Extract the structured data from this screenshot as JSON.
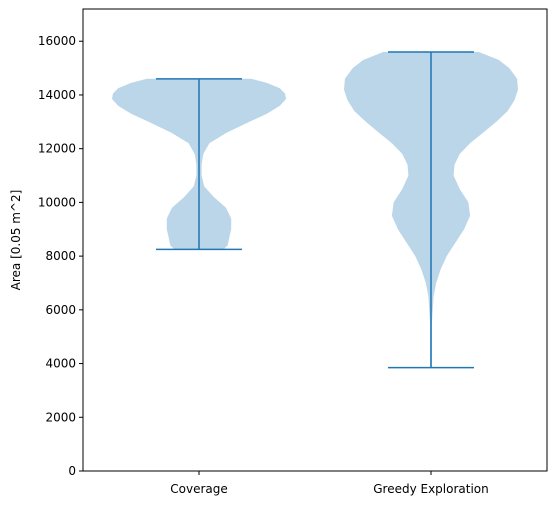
{
  "chart_data": {
    "type": "violin",
    "title": "",
    "xlabel": "",
    "ylabel": "Area [0.05 m^2]",
    "ylim": [
      0,
      17200
    ],
    "yticks": [
      0,
      2000,
      4000,
      6000,
      8000,
      10000,
      12000,
      14000,
      16000
    ],
    "ytick_labels": [
      "0",
      "2000",
      "4000",
      "6000",
      "8000",
      "10000",
      "12000",
      "14000",
      "16000"
    ],
    "categories": [
      "Coverage",
      "Greedy Exploration"
    ],
    "colors": {
      "fill": "#bcd6e9",
      "line": "#1f77b4",
      "axis": "#000000"
    },
    "grid": false,
    "legend": "none",
    "violins": [
      {
        "category": "Coverage",
        "min": 8250,
        "max": 14600,
        "density": [
          [
            8250,
            0.28
          ],
          [
            8400,
            0.33
          ],
          [
            8700,
            0.35
          ],
          [
            9000,
            0.37
          ],
          [
            9400,
            0.37
          ],
          [
            9800,
            0.31
          ],
          [
            10200,
            0.17
          ],
          [
            10600,
            0.06
          ],
          [
            11000,
            0.03
          ],
          [
            11400,
            0.03
          ],
          [
            11800,
            0.05
          ],
          [
            12200,
            0.12
          ],
          [
            12600,
            0.32
          ],
          [
            13000,
            0.58
          ],
          [
            13300,
            0.78
          ],
          [
            13600,
            0.93
          ],
          [
            13850,
            1.0
          ],
          [
            14050,
            0.99
          ],
          [
            14250,
            0.93
          ],
          [
            14450,
            0.78
          ],
          [
            14600,
            0.6
          ]
        ]
      },
      {
        "category": "Greedy Exploration",
        "min": 3850,
        "max": 15600,
        "density": [
          [
            3850,
            0.01
          ],
          [
            4500,
            0.01
          ],
          [
            5500,
            0.01
          ],
          [
            6500,
            0.03
          ],
          [
            7000,
            0.06
          ],
          [
            7500,
            0.11
          ],
          [
            8000,
            0.18
          ],
          [
            8500,
            0.28
          ],
          [
            9000,
            0.38
          ],
          [
            9500,
            0.45
          ],
          [
            10000,
            0.43
          ],
          [
            10500,
            0.33
          ],
          [
            11000,
            0.26
          ],
          [
            11400,
            0.27
          ],
          [
            11800,
            0.33
          ],
          [
            12200,
            0.45
          ],
          [
            12600,
            0.6
          ],
          [
            13000,
            0.75
          ],
          [
            13400,
            0.88
          ],
          [
            13800,
            0.96
          ],
          [
            14200,
            1.0
          ],
          [
            14600,
            0.99
          ],
          [
            15000,
            0.9
          ],
          [
            15300,
            0.78
          ],
          [
            15600,
            0.55
          ]
        ]
      }
    ]
  }
}
